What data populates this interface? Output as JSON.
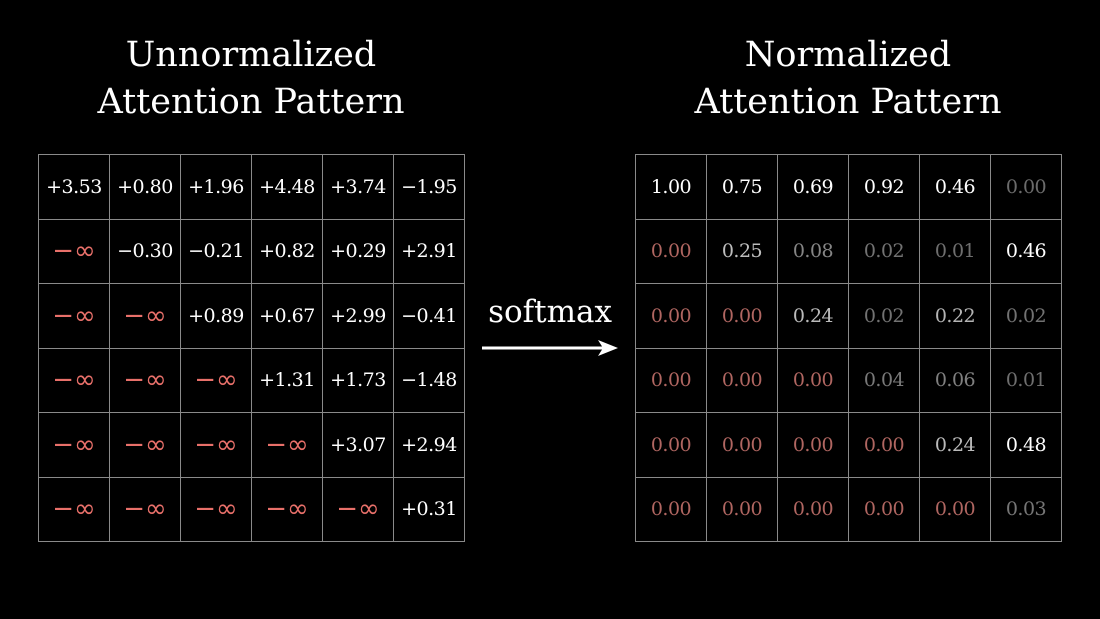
{
  "left_title": [
    "Unnormalized",
    "Attention Pattern"
  ],
  "right_title": [
    "Normalized",
    "Attention Pattern"
  ],
  "operation_label": "softmax",
  "colors": {
    "background": "#000000",
    "text": "#ffffff",
    "neg_inf": "#e8706a",
    "masked_zero": "#b06661",
    "grid_line": "#8a8a8a"
  },
  "unnormalized": [
    [
      "+3.53",
      "+0.80",
      "+1.96",
      "+4.48",
      "+3.74",
      "−1.95"
    ],
    [
      "−∞",
      "−0.30",
      "−0.21",
      "+0.82",
      "+0.29",
      "+2.91"
    ],
    [
      "−∞",
      "−∞",
      "+0.89",
      "+0.67",
      "+2.99",
      "−0.41"
    ],
    [
      "−∞",
      "−∞",
      "−∞",
      "+1.31",
      "+1.73",
      "−1.48"
    ],
    [
      "−∞",
      "−∞",
      "−∞",
      "−∞",
      "+3.07",
      "+2.94"
    ],
    [
      "−∞",
      "−∞",
      "−∞",
      "−∞",
      "−∞",
      "+0.31"
    ]
  ],
  "normalized": [
    [
      "1.00",
      "0.75",
      "0.69",
      "0.92",
      "0.46",
      "0.00"
    ],
    [
      "0.00",
      "0.25",
      "0.08",
      "0.02",
      "0.01",
      "0.46"
    ],
    [
      "0.00",
      "0.00",
      "0.24",
      "0.02",
      "0.22",
      "0.02"
    ],
    [
      "0.00",
      "0.00",
      "0.00",
      "0.04",
      "0.06",
      "0.01"
    ],
    [
      "0.00",
      "0.00",
      "0.00",
      "0.00",
      "0.24",
      "0.48"
    ],
    [
      "0.00",
      "0.00",
      "0.00",
      "0.00",
      "0.00",
      "0.03"
    ]
  ]
}
